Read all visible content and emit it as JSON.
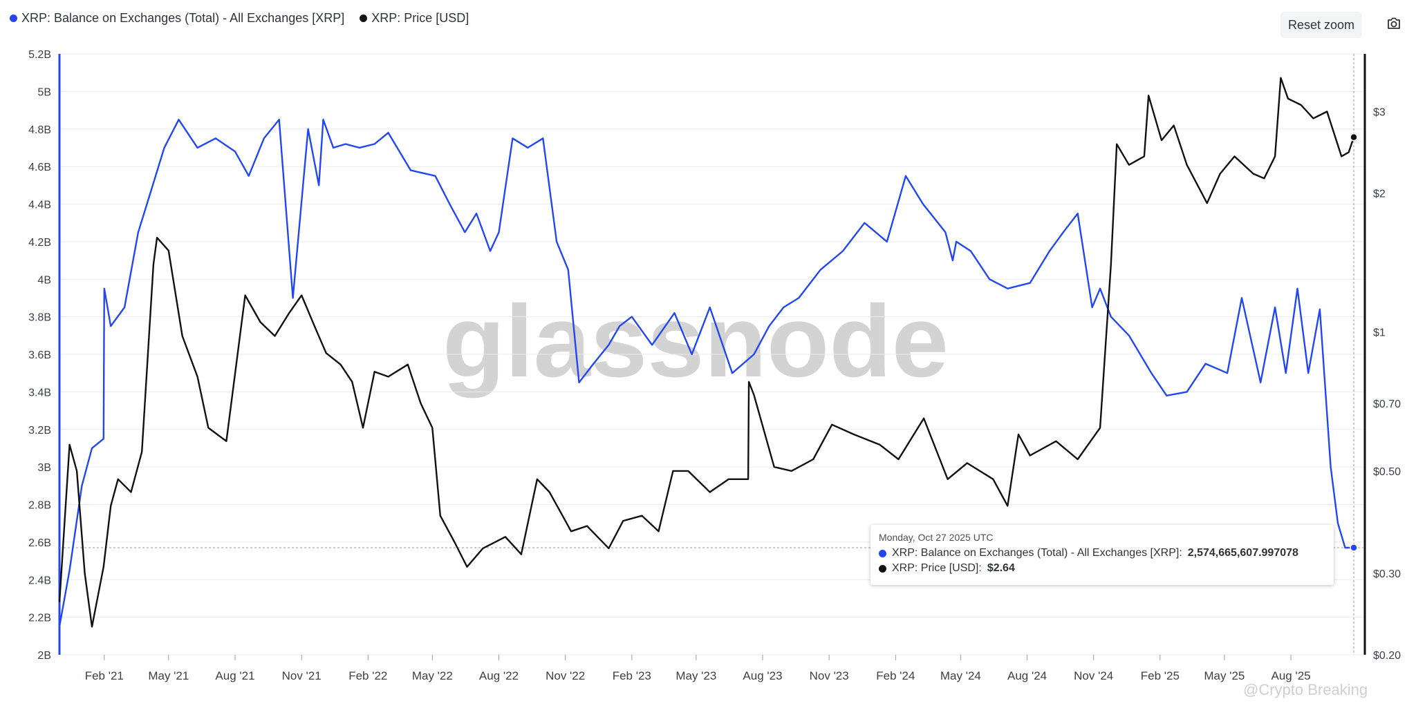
{
  "legend": {
    "balance_label": "XRP: Balance on Exchanges (Total) - All Exchanges [XRP]",
    "price_label": "XRP: Price [USD]"
  },
  "toolbar": {
    "reset_zoom_label": "Reset zoom",
    "camera_icon": "camera-icon"
  },
  "watermark": "glassnode",
  "credit": "@Crypto Breaking",
  "tooltip": {
    "date": "Monday, Oct 27 2025 UTC",
    "balance_label": "XRP: Balance on Exchanges (Total) - All Exchanges [XRP]:",
    "balance_value": "2,574,665,607.997078",
    "price_label": "XRP: Price [USD]:",
    "price_value": "$2.64"
  },
  "colors": {
    "balance": "#2146f2",
    "price": "#111111",
    "grid": "#ebebeb"
  },
  "chart_data": {
    "type": "line",
    "title": "",
    "x_labels": [
      "Feb '21",
      "May '21",
      "Aug '21",
      "Nov '21",
      "Feb '22",
      "May '22",
      "Aug '22",
      "Nov '22",
      "Feb '23",
      "May '23",
      "Aug '23",
      "Nov '23",
      "Feb '24",
      "May '24",
      "Aug '24",
      "Nov '24",
      "Feb '25",
      "May '25",
      "Aug '25"
    ],
    "x_range": [
      "2020-12-01",
      "2025-10-27"
    ],
    "y_left_ticks": [
      "2B",
      "2.2B",
      "2.4B",
      "2.6B",
      "2.8B",
      "3B",
      "3.2B",
      "3.4B",
      "3.6B",
      "3.8B",
      "4B",
      "4.2B",
      "4.4B",
      "4.6B",
      "4.8B",
      "5B",
      "5.2B"
    ],
    "y_left_range": [
      2.0,
      5.2
    ],
    "y_left_unit": "billions XRP",
    "y_right_ticks": [
      "$0.20",
      "$0.30",
      "$0.50",
      "$0.70",
      "$1",
      "$2",
      "$3"
    ],
    "y_right_scale": "log",
    "y_right_range": [
      0.2,
      4.0
    ],
    "grid": true,
    "legend_position": "top-left",
    "series": [
      {
        "name": "XRP: Balance on Exchanges (Total) - All Exchanges [XRP]",
        "axis": "left",
        "x": [
          "2020-12-01",
          "2020-12-15",
          "2021-01-01",
          "2021-01-15",
          "2021-01-31",
          "2021-02-01",
          "2021-02-10",
          "2021-03-01",
          "2021-03-20",
          "2021-04-05",
          "2021-04-25",
          "2021-05-15",
          "2021-06-10",
          "2021-07-05",
          "2021-08-01",
          "2021-08-20",
          "2021-09-10",
          "2021-10-01",
          "2021-10-20",
          "2021-11-10",
          "2021-11-25",
          "2021-12-01",
          "2021-12-15",
          "2022-01-01",
          "2022-01-20",
          "2022-02-10",
          "2022-03-01",
          "2022-04-01",
          "2022-05-05",
          "2022-05-25",
          "2022-06-15",
          "2022-07-01",
          "2022-07-20",
          "2022-08-01",
          "2022-08-20",
          "2022-09-10",
          "2022-10-01",
          "2022-10-20",
          "2022-11-05",
          "2022-11-20",
          "2022-12-10",
          "2022-12-31",
          "2023-01-15",
          "2023-02-01",
          "2023-03-01",
          "2023-04-01",
          "2023-04-25",
          "2023-05-20",
          "2023-06-20",
          "2023-07-20",
          "2023-08-10",
          "2023-08-30",
          "2023-09-20",
          "2023-10-20",
          "2023-11-20",
          "2023-12-20",
          "2024-01-20",
          "2024-02-15",
          "2024-03-10",
          "2024-04-10",
          "2024-04-20",
          "2024-04-25",
          "2024-05-15",
          "2024-06-10",
          "2024-07-05",
          "2024-08-05",
          "2024-09-01",
          "2024-09-20",
          "2024-10-10",
          "2024-10-30",
          "2024-11-10",
          "2024-11-25",
          "2024-12-20",
          "2025-01-20",
          "2025-02-10",
          "2025-03-10",
          "2025-04-05",
          "2025-05-05",
          "2025-05-25",
          "2025-06-20",
          "2025-07-10",
          "2025-07-25",
          "2025-08-10",
          "2025-08-25",
          "2025-09-10",
          "2025-09-25",
          "2025-10-05",
          "2025-10-15",
          "2025-10-27"
        ],
        "values": [
          2.15,
          2.45,
          2.9,
          3.1,
          3.15,
          3.95,
          3.75,
          3.85,
          4.25,
          4.45,
          4.7,
          4.85,
          4.7,
          4.75,
          4.68,
          4.55,
          4.75,
          4.85,
          3.9,
          4.8,
          4.5,
          4.85,
          4.7,
          4.72,
          4.7,
          4.72,
          4.78,
          4.58,
          4.55,
          4.4,
          4.25,
          4.35,
          4.15,
          4.25,
          4.75,
          4.7,
          4.75,
          4.2,
          4.05,
          3.45,
          3.55,
          3.65,
          3.75,
          3.8,
          3.65,
          3.82,
          3.6,
          3.85,
          3.5,
          3.6,
          3.75,
          3.85,
          3.9,
          4.05,
          4.15,
          4.3,
          4.2,
          4.55,
          4.4,
          4.25,
          4.1,
          4.2,
          4.15,
          4.0,
          3.95,
          3.98,
          4.15,
          4.25,
          4.35,
          3.85,
          3.95,
          3.8,
          3.7,
          3.5,
          3.38,
          3.4,
          3.55,
          3.5,
          3.9,
          3.45,
          3.85,
          3.5,
          3.95,
          3.5,
          3.84,
          3.0,
          2.7,
          2.57,
          2.57
        ]
      },
      {
        "name": "XRP: Price [USD]",
        "axis": "right",
        "x": [
          "2020-12-01",
          "2020-12-15",
          "2020-12-25",
          "2021-01-05",
          "2021-01-15",
          "2021-01-31",
          "2021-02-10",
          "2021-02-20",
          "2021-03-10",
          "2021-03-25",
          "2021-04-10",
          "2021-04-15",
          "2021-05-01",
          "2021-05-20",
          "2021-06-10",
          "2021-06-25",
          "2021-07-20",
          "2021-08-15",
          "2021-09-05",
          "2021-09-25",
          "2021-10-15",
          "2021-11-01",
          "2021-11-20",
          "2021-12-05",
          "2021-12-25",
          "2022-01-10",
          "2022-01-25",
          "2022-02-10",
          "2022-03-01",
          "2022-03-28",
          "2022-04-15",
          "2022-05-01",
          "2022-05-12",
          "2022-06-01",
          "2022-06-18",
          "2022-07-10",
          "2022-08-10",
          "2022-09-01",
          "2022-09-23",
          "2022-10-10",
          "2022-11-01",
          "2022-11-09",
          "2022-12-01",
          "2022-12-31",
          "2023-01-20",
          "2023-02-15",
          "2023-03-10",
          "2023-03-30",
          "2023-04-20",
          "2023-05-20",
          "2023-06-15",
          "2023-07-12",
          "2023-07-13",
          "2023-07-20",
          "2023-08-17",
          "2023-09-10",
          "2023-10-10",
          "2023-11-05",
          "2023-12-05",
          "2024-01-10",
          "2024-02-05",
          "2024-03-11",
          "2024-04-13",
          "2024-05-10",
          "2024-06-15",
          "2024-07-05",
          "2024-07-20",
          "2024-08-05",
          "2024-09-10",
          "2024-10-10",
          "2024-11-10",
          "2024-11-25",
          "2024-12-03",
          "2024-12-20",
          "2025-01-10",
          "2025-01-16",
          "2025-02-03",
          "2025-02-20",
          "2025-03-10",
          "2025-04-07",
          "2025-04-25",
          "2025-05-15",
          "2025-06-10",
          "2025-06-25",
          "2025-07-10",
          "2025-07-18",
          "2025-07-28",
          "2025-08-15",
          "2025-09-01",
          "2025-09-20",
          "2025-10-10",
          "2025-10-20",
          "2025-10-27"
        ],
        "values": [
          0.26,
          0.57,
          0.5,
          0.3,
          0.23,
          0.31,
          0.42,
          0.48,
          0.45,
          0.55,
          1.4,
          1.6,
          1.5,
          0.98,
          0.8,
          0.62,
          0.58,
          1.2,
          1.05,
          0.98,
          1.1,
          1.2,
          1.02,
          0.9,
          0.85,
          0.78,
          0.62,
          0.82,
          0.8,
          0.85,
          0.7,
          0.62,
          0.4,
          0.35,
          0.31,
          0.34,
          0.36,
          0.33,
          0.48,
          0.45,
          0.39,
          0.37,
          0.38,
          0.34,
          0.39,
          0.4,
          0.37,
          0.5,
          0.5,
          0.45,
          0.48,
          0.48,
          0.78,
          0.73,
          0.51,
          0.5,
          0.53,
          0.63,
          0.6,
          0.57,
          0.53,
          0.65,
          0.48,
          0.52,
          0.48,
          0.42,
          0.6,
          0.54,
          0.58,
          0.53,
          0.62,
          1.4,
          2.55,
          2.3,
          2.4,
          3.25,
          2.6,
          2.8,
          2.3,
          1.9,
          2.2,
          2.4,
          2.2,
          2.15,
          2.4,
          3.55,
          3.2,
          3.1,
          2.9,
          3.0,
          2.4,
          2.45,
          2.64
        ]
      }
    ]
  }
}
